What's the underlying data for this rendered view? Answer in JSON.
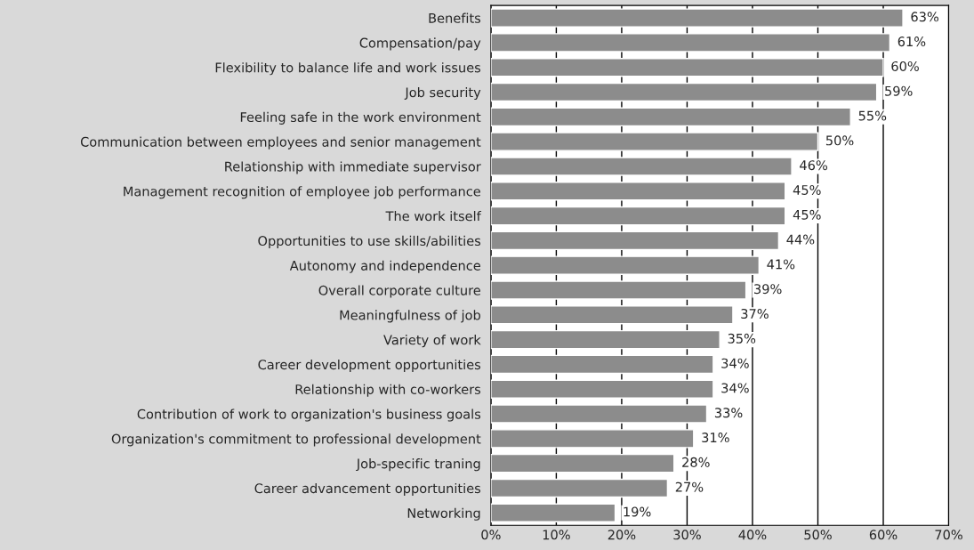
{
  "chart_data": {
    "type": "bar",
    "orientation": "horizontal",
    "categories": [
      "Benefits",
      "Compensation/pay",
      "Flexibility to balance life and work issues",
      "Job security",
      "Feeling safe in the work environment",
      "Communication between employees and senior management",
      "Relationship with immediate supervisor",
      "Management recognition of employee job performance",
      "The work itself",
      "Opportunities to use skills/abilities",
      "Autonomy and independence",
      "Overall corporate culture",
      "Meaningfulness of job",
      "Variety of work",
      "Career development opportunities",
      "Relationship with co-workers",
      "Contribution of work to organization's business goals",
      "Organization's commitment to professional development",
      "Job-specific traning",
      "Career advancement opportunities",
      "Networking"
    ],
    "values": [
      63,
      61,
      60,
      59,
      55,
      50,
      46,
      45,
      45,
      44,
      41,
      39,
      37,
      35,
      34,
      34,
      33,
      31,
      28,
      27,
      19
    ],
    "value_labels": [
      "63%",
      "61%",
      "60%",
      "59%",
      "55%",
      "50%",
      "46%",
      "45%",
      "45%",
      "44%",
      "41%",
      "39%",
      "37%",
      "35%",
      "34%",
      "34%",
      "33%",
      "31%",
      "28%",
      "27%",
      "19%"
    ],
    "color": "#8c8c8c",
    "xlim": [
      0,
      70
    ],
    "xticks": [
      {
        "value": 0,
        "label": "0%"
      },
      {
        "value": 10,
        "label": "10%"
      },
      {
        "value": 20,
        "label": "20%"
      },
      {
        "value": 30,
        "label": "30%"
      },
      {
        "value": 40,
        "label": "40%"
      },
      {
        "value": 50,
        "label": "50%"
      },
      {
        "value": 60,
        "label": "60%"
      },
      {
        "value": 70,
        "label": "70%"
      }
    ],
    "grid": "x",
    "legend": false
  }
}
